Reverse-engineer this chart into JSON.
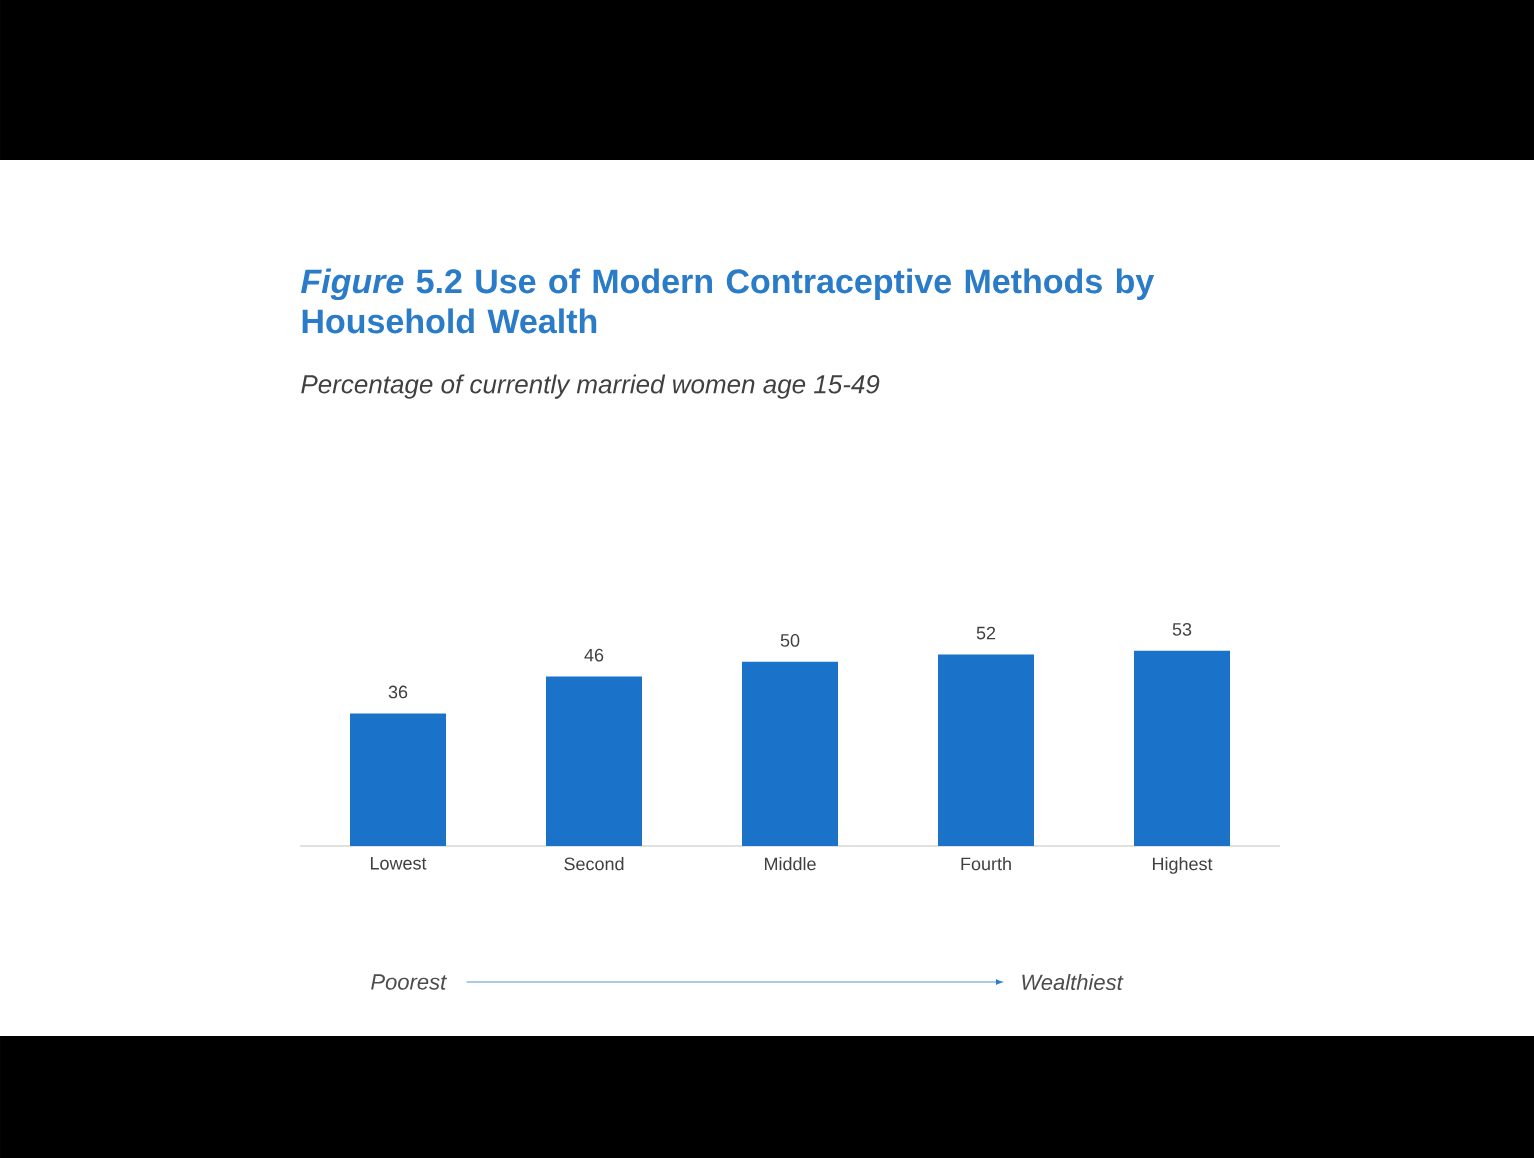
{
  "chart_data": {
    "type": "bar",
    "title": "*Figure* 5.2 Use of Modern Contraceptive Methods by Household Wealth",
    "subtitle": "Percentage of currently married women age 15-49",
    "categories": [
      "Lowest",
      "Second",
      "Middle",
      "Fourth",
      "Highest"
    ],
    "values": [
      36,
      46,
      50,
      52,
      53
    ],
    "color": "#1a73c8",
    "data_labels": true,
    "annotations": [
      "Poorest",
      "Wealthiest"
    ]
  }
}
